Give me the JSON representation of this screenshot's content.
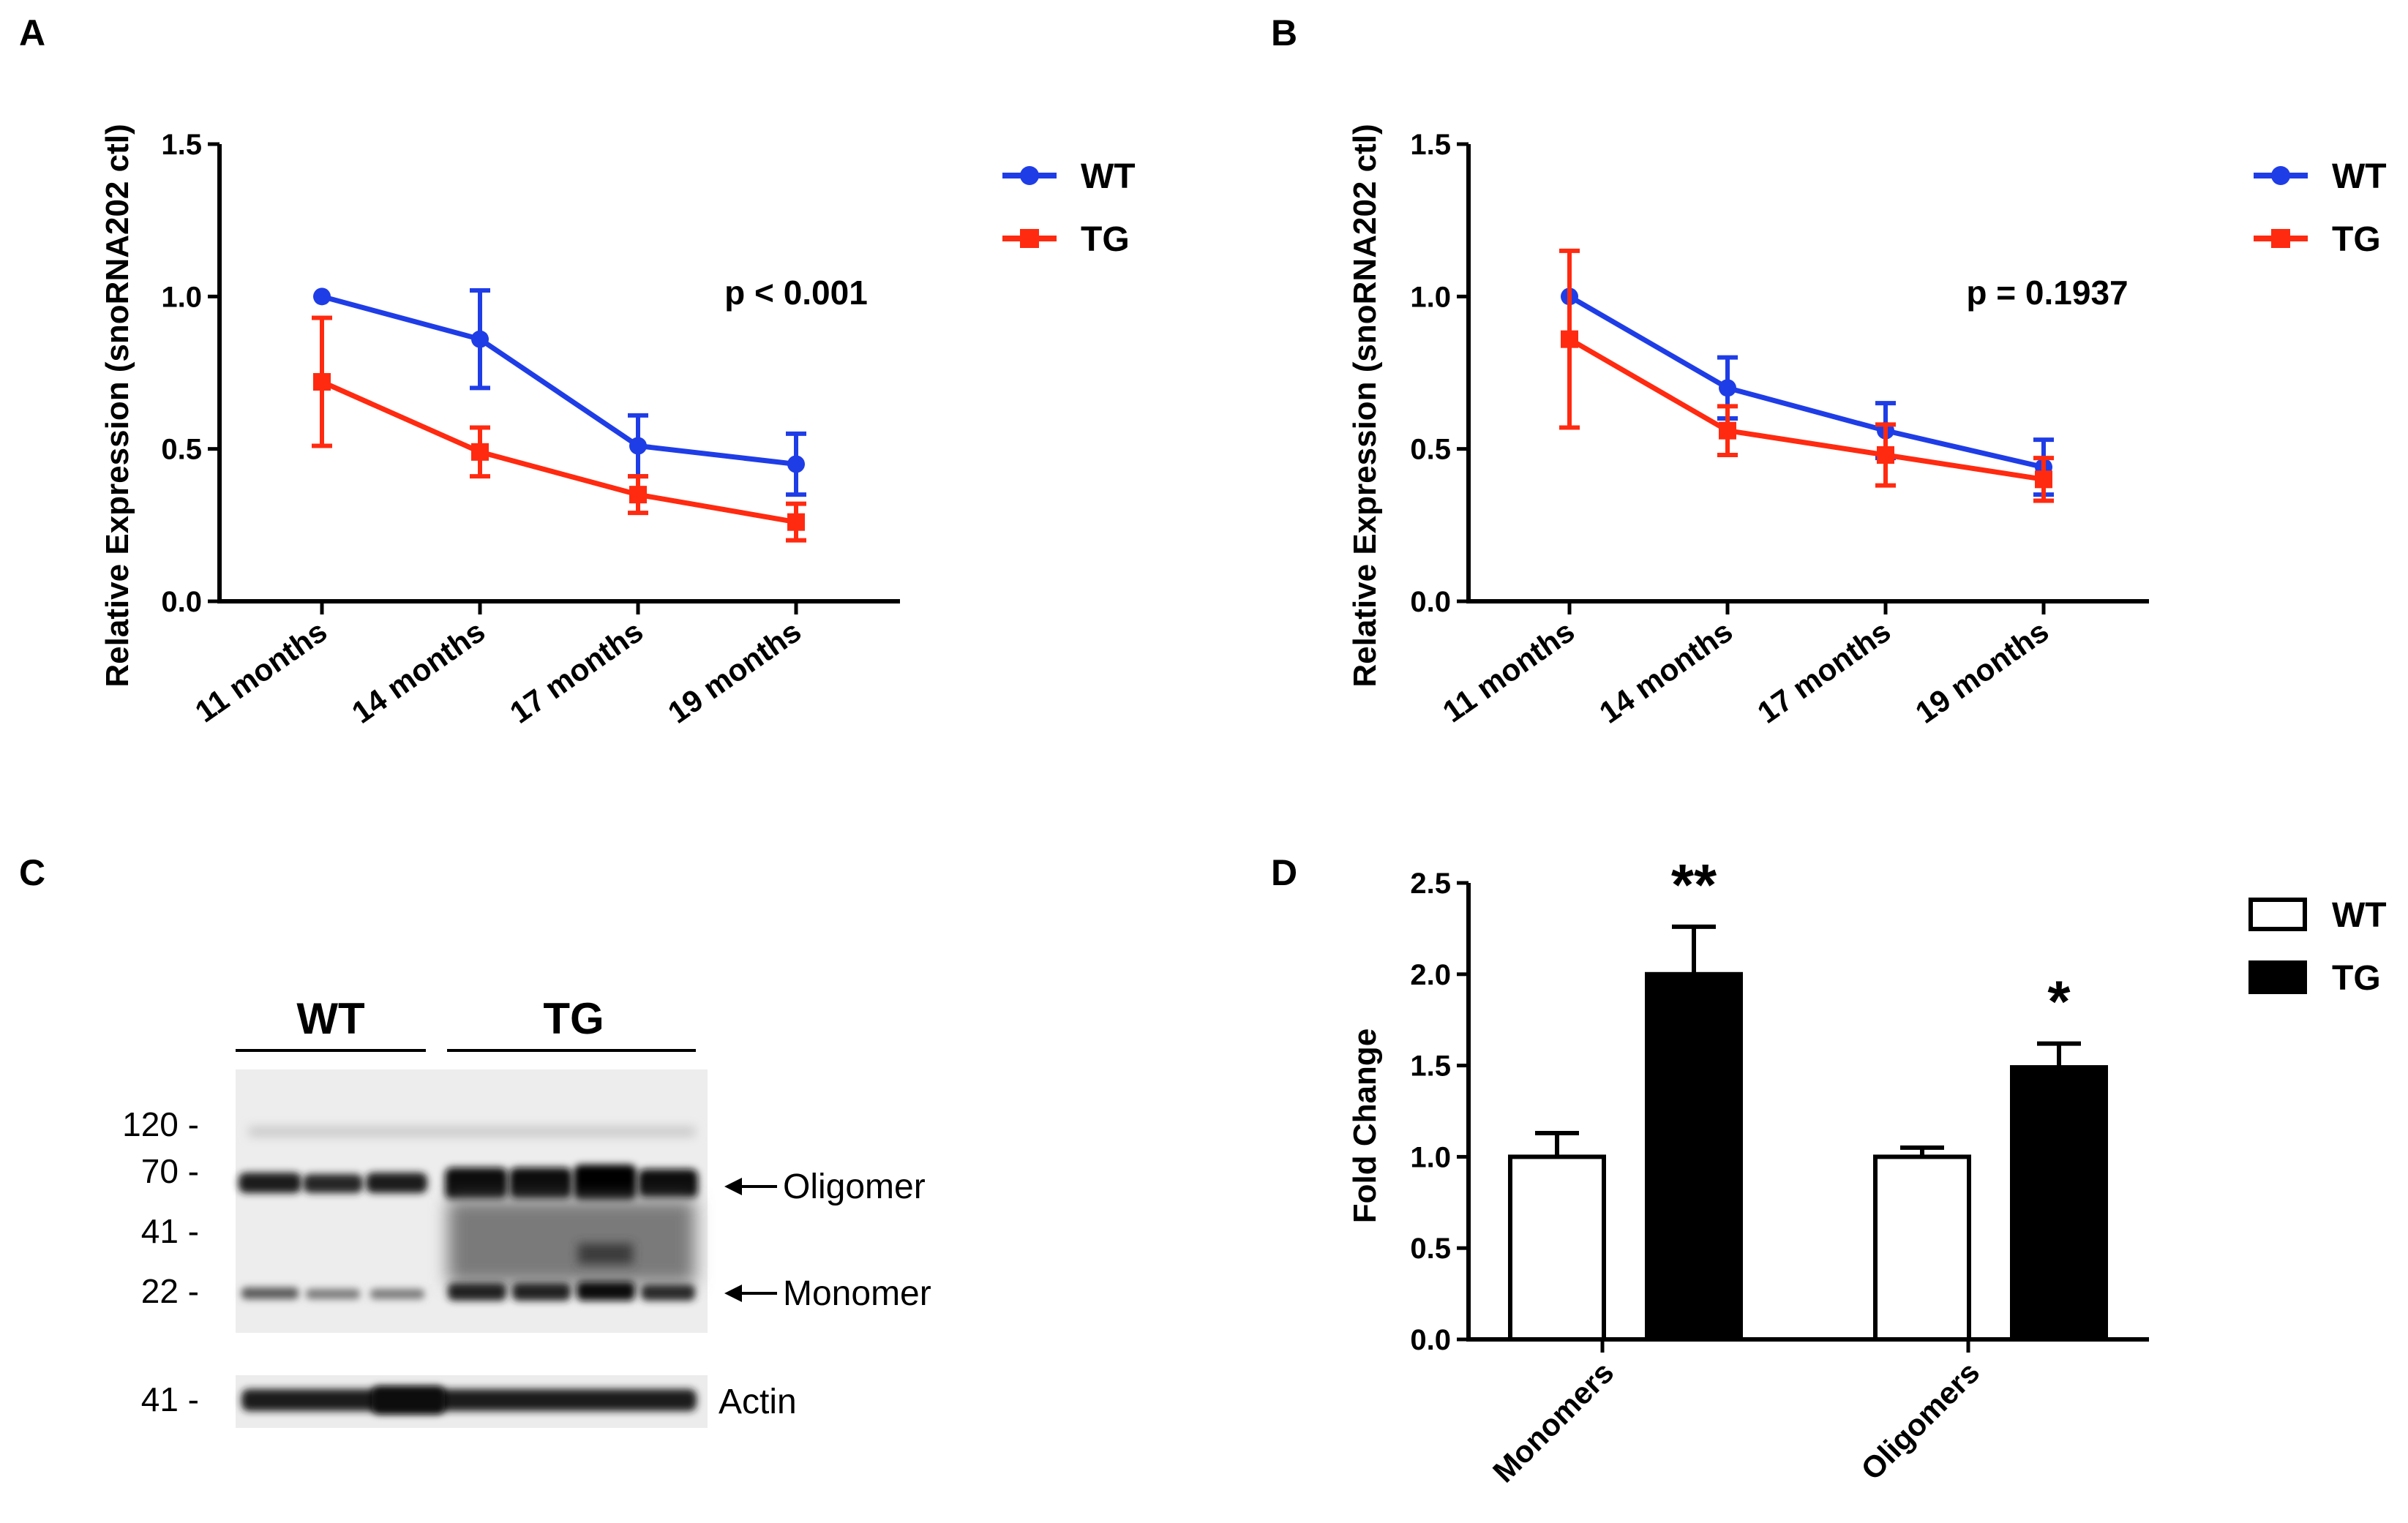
{
  "colors": {
    "wt": "#1f3de6",
    "tg": "#ff2a10",
    "axis": "#000000",
    "bar_tg": "#000000",
    "bar_wt": "#ffffff"
  },
  "panels": {
    "a": {
      "letter": "A"
    },
    "b": {
      "letter": "B"
    },
    "c": {
      "letter": "C"
    },
    "d": {
      "letter": "D"
    }
  },
  "western_blot": {
    "groups": [
      "WT",
      "TG"
    ],
    "lanes_per_group": [
      3,
      4
    ],
    "markers": [
      "120 -",
      "70 -",
      "41 -",
      "22 -"
    ],
    "actin_marker": "41 -",
    "band_labels": [
      "Oligomer",
      "Monomer"
    ],
    "actin_label": "Actin"
  },
  "chart_data": [
    {
      "id": "A",
      "type": "line",
      "categories": [
        "11 months",
        "14 months",
        "17 months",
        "19 months"
      ],
      "series": [
        {
          "name": "WT",
          "values": [
            1.0,
            0.86,
            0.51,
            0.45
          ],
          "errors": [
            0.0,
            0.16,
            0.1,
            0.1
          ],
          "marker": "circle"
        },
        {
          "name": "TG",
          "values": [
            0.72,
            0.49,
            0.35,
            0.26
          ],
          "errors": [
            0.21,
            0.08,
            0.06,
            0.06
          ],
          "marker": "square"
        }
      ],
      "ylabel": "Relative Expression (snoRNA202 ctl)",
      "xlabel": "",
      "ylim": [
        0,
        1.5
      ],
      "yticks": [
        "0.0",
        "0.5",
        "1.0",
        "1.5"
      ],
      "annotation": "p < 0.001",
      "legend": "top-right"
    },
    {
      "id": "B",
      "type": "line",
      "categories": [
        "11 months",
        "14 months",
        "17 months",
        "19 months"
      ],
      "series": [
        {
          "name": "WT",
          "values": [
            1.0,
            0.7,
            0.56,
            0.44
          ],
          "errors": [
            0.0,
            0.1,
            0.09,
            0.09
          ],
          "marker": "circle"
        },
        {
          "name": "TG",
          "values": [
            0.86,
            0.56,
            0.48,
            0.4
          ],
          "errors": [
            0.29,
            0.08,
            0.1,
            0.07
          ],
          "marker": "square"
        }
      ],
      "ylabel": "Relative Expression (snoRNA202 ctl)",
      "xlabel": "",
      "ylim": [
        0,
        1.5
      ],
      "yticks": [
        "0.0",
        "0.5",
        "1.0",
        "1.5"
      ],
      "annotation": "p = 0.1937",
      "legend": "top-right"
    },
    {
      "id": "D",
      "type": "bar",
      "categories": [
        "Monomers",
        "Oligomers"
      ],
      "series": [
        {
          "name": "WT",
          "values": [
            1.0,
            1.0
          ],
          "errors": [
            0.13,
            0.05
          ]
        },
        {
          "name": "TG",
          "values": [
            2.0,
            1.49
          ],
          "errors": [
            0.26,
            0.13
          ]
        }
      ],
      "significance": [
        "**",
        "*"
      ],
      "ylabel": "Fold Change",
      "xlabel": "",
      "ylim": [
        0,
        2.5
      ],
      "yticks": [
        "0.0",
        "0.5",
        "1.0",
        "1.5",
        "2.0",
        "2.5"
      ],
      "legend": "top-right"
    }
  ]
}
